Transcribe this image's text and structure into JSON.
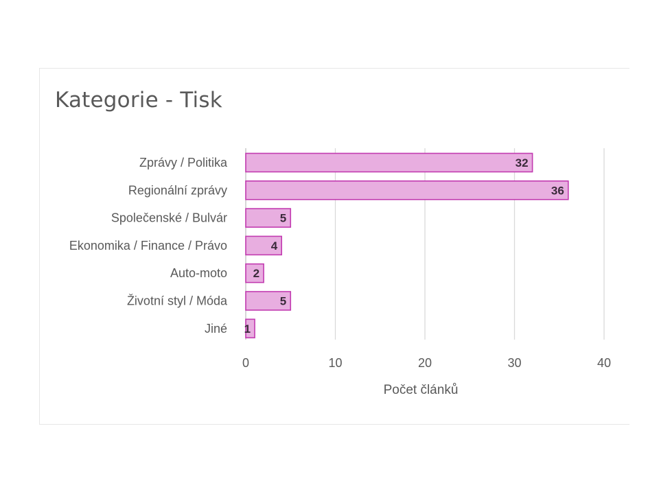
{
  "chart_data": {
    "type": "bar",
    "orientation": "horizontal",
    "title": "Kategorie - Tisk",
    "xlabel": "Počet článků",
    "ylabel": "",
    "categories": [
      "Zprávy / Politika",
      "Regionální zprávy",
      "Společenské / Bulvár",
      "Ekonomika / Finance / Právo",
      "Auto-moto",
      "Životní styl / Móda",
      "Jiné"
    ],
    "values": [
      32,
      36,
      5,
      4,
      2,
      5,
      1
    ],
    "xlim": [
      0,
      40
    ],
    "xticks": [
      0,
      10,
      20,
      30,
      40
    ],
    "grid": true,
    "data_labels": true,
    "colors": {
      "bar_fill": "#e8aee0",
      "bar_stroke": "#c23bb0",
      "grid": "#d9d9d9"
    }
  }
}
